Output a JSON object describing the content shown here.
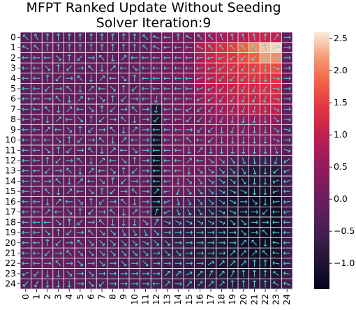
{
  "chart_data": {
    "type": "heatmap",
    "title_lines": [
      "MFPT Ranked Update Without Seeding",
      "Solver Iteration:9"
    ],
    "rows": 25,
    "cols": 25,
    "x_tick_labels": [
      "0",
      "1",
      "2",
      "3",
      "4",
      "5",
      "6",
      "7",
      "8",
      "9",
      "10",
      "11",
      "12",
      "13",
      "14",
      "15",
      "16",
      "17",
      "18",
      "19",
      "20",
      "21",
      "22",
      "23",
      "24"
    ],
    "y_tick_labels": [
      "0",
      "1",
      "2",
      "3",
      "4",
      "5",
      "6",
      "7",
      "8",
      "9",
      "10",
      "11",
      "12",
      "13",
      "14",
      "15",
      "16",
      "17",
      "18",
      "19",
      "20",
      "21",
      "22",
      "23",
      "24"
    ],
    "colorbar": {
      "min": -1.4,
      "max": 2.6,
      "ticks": [
        2.5,
        2.0,
        1.5,
        1.0,
        0.5,
        0.0,
        -0.5,
        -1.0
      ],
      "tick_labels": [
        "2.5",
        "2.0",
        "1.5",
        "1.0",
        "0.5",
        "0.0",
        "−0.5",
        "−1.0"
      ],
      "colormap": "rocket"
    },
    "grid": true,
    "grid_color": "#ffffff",
    "arrow_color": "#40e8e0",
    "values_rows": [
      "-0.25 -0.2 -0.2 -0.2 -0.2 -0.2 -0.2 -0.2 -0.2 -0.2 -0.2 -0.2 -0.1 0.1 0.1 0.1 0.3 0.6 0.7 0.8 0.9 1.1 1.1 1.0 -0.1",
      "-0.2 -0.1 -0.1 -0.1 -0.1 -0.1 -0.1 -0.1 -0.1 -0.1 -0.1 -0.1 0.0 0.1 0.1 0.2 0.9 1.1 1.3 1.5 1.8 2.1 2.4 2.5 -0.1",
      "-0.2 -0.1 -0.1 -0.1 -0.1 -0.1 -0.1 -0.1 -0.1 -0.1 -0.1 -0.1 0.0 0.1 0.1 0.2 0.8 1.1 1.3 1.4 1.6 1.8 2.2 2.1 -0.1",
      "-0.2 -0.1 -0.1 -0.1 -0.1 -0.1 -0.1 -0.1 -0.1 -0.1 -0.1 -0.1 0.0 0.1 0.1 0.2 0.8 1.0 1.2 1.3 1.4 1.5 1.6 1.6 -0.1",
      "-0.2 -0.1 -0.1 -0.1 -0.1 -0.1 -0.1 -0.1 -0.1 -0.1 -0.1 -0.1 0.0 0.1 0.1 0.2 0.7 1.0 1.1 1.2 1.3 1.4 1.4 1.4 -0.1",
      "-0.2 -0.1 -0.1 -0.1 -0.1 -0.1 -0.1 -0.1 -0.1 -0.1 -0.1 -0.1 0.0 0.1 0.1 0.2 0.6 0.9 1.0 1.1 1.2 1.2 1.3 1.3 -0.1",
      "-0.2 -0.1 -0.1 -0.1 -0.1 -0.1 -0.1 -0.1 -0.1 -0.1 -0.1 -0.1 0.0 0.1 0.1 0.2 0.5 0.8 0.9 1.0 1.1 1.1 1.2 1.2 -0.1",
      "-0.2 -0.1 -0.1 -0.1 -0.1 -0.1 -0.1 -0.1 -0.1 -0.1 -0.1 -0.1 -1.0 0.1 0.1 0.2 0.3 0.6 0.7 0.8 0.9 1.0 1.0 1.0 -0.1",
      "-0.2 -0.1 -0.1 -0.1 -0.1 -0.1 -0.1 -0.1 -0.1 -0.1 -0.1 -0.1 -1.1 0.0 0.1 0.1 0.2 0.3 0.4 0.5 0.5 0.6 0.6 0.6 -0.1",
      "-0.2 -0.1 -0.1 -0.1 -0.1 -0.1 -0.1 -0.1 -0.1 -0.1 -0.1 -0.1 -1.1 0.0 0.1 0.1 0.1 0.2 0.2 0.2 0.3 0.3 0.3 0.3 -0.2",
      "-0.2 -0.1 -0.1 -0.1 -0.1 -0.1 -0.1 -0.1 -0.1 -0.1 -0.1 -0.1 -1.1 0.0 0.1 0.1 0.1 0.2 0.2 0.2 0.2 0.2 0.2 0.2 -0.2",
      "-0.2 -0.1 -0.1 -0.1 -0.1 -0.1 -0.1 -0.1 -0.1 -0.1 -0.1 -0.1 -1.1 0.0 0.1 0.1 0.1 0.1 0.1 0.1 0.1 0.1 0.1 0.1 -0.2",
      "-0.2 -0.1 -0.1 -0.1 -0.1 -0.1 -0.1 -0.1 -0.1 -0.1 -0.1 -0.1 -1.1 0.0 0.1 0.1 0.1 0.1 0.0 -0.3 -0.5 -0.6 -0.6 -0.6 -0.3",
      "-0.2 -0.1 -0.1 -0.1 -0.1 -0.1 -0.1 -0.1 -0.1 -0.1 -0.1 -0.1 -1.1 0.0 0.1 0.1 0.1 0.0 -0.3 -0.6 -0.8 -0.9 -0.9 -0.9 -0.4",
      "-0.2 -0.1 -0.1 -0.1 -0.1 -0.1 -0.1 -0.1 -0.1 -0.1 -0.1 -0.1 -1.1 0.0 0.1 0.0 0.0 -0.2 -0.6 -0.8 -1.0 -1.0 -1.0 -1.0 -0.5",
      "-0.2 -0.1 -0.1 -0.1 -0.1 -0.1 -0.1 -0.1 -0.1 -0.1 -0.1 -0.1 -1.1 -0.1 0.0 0.0 -0.2 -0.4 -0.7 -0.9 -1.1 -1.1 -1.1 -1.1 -0.5",
      "-0.2 -0.1 -0.1 -0.1 -0.1 -0.1 -0.1 -0.1 -0.1 -0.1 -0.1 -0.1 -1.1 -0.2 -0.2 -0.3 -0.5 -0.7 -0.9 -1.0 -1.1 -1.2 -1.2 -1.2 -0.5",
      "-0.2 -0.1 -0.1 -0.1 -0.1 -0.1 -0.1 -0.1 -0.1 -0.1 -0.1 -0.1 -1.1 -0.4 -0.5 -0.6 -0.7 -0.8 -0.9 -1.0 -1.1 -1.2 -1.2 -1.2 -0.6",
      "-0.2 -0.1 -0.1 -0.1 -0.1 -0.1 -0.1 -0.1 -0.1 -0.1 -0.1 -0.1 -0.3 -0.5 -0.6 -0.7 -0.8 -0.9 -1.0 -1.1 -1.1 -1.2 -1.2 -1.2 -0.6",
      "-0.2 -0.1 -0.1 -0.1 -0.1 -0.1 -0.1 -0.1 -0.2 -0.2 -0.3 -0.3 -0.4 -0.5 -0.6 -0.7 -0.8 -0.9 -1.0 -1.1 -1.2 -1.2 -1.2 -1.2 -0.6",
      "-0.2 -0.1 -0.1 -0.1 -0.1 -0.1 -0.1 -0.2 -0.2 -0.3 -0.3 -0.4 -0.5 -0.5 -0.6 -0.7 -0.8 -0.9 -1.0 -1.1 -1.2 -1.2 -1.2 -1.2 -0.6",
      "-0.2 -0.1 -0.1 -0.1 -0.1 -0.1 -0.2 -0.2 -0.3 -0.3 -0.4 -0.4 -0.5 -0.6 -0.6 -0.7 -0.8 -0.9 -1.0 -1.1 -1.1 -1.2 -1.2 -1.1 -0.6",
      "-0.2 -0.1 -0.1 -0.1 -0.1 -0.2 -0.2 -0.3 -0.3 -0.4 -0.4 -0.5 -0.5 -0.6 -0.7 -0.7 -0.8 -0.9 -1.0 -1.0 -1.1 -1.1 -1.1 -1.1 -0.6",
      "-0.2 -0.1 -0.1 -0.1 -0.1 -0.2 -0.2 -0.3 -0.3 -0.4 -0.4 -0.5 -0.5 -0.6 -0.6 -0.7 -0.8 -0.8 -0.9 -1.0 -1.0 -1.0 -1.0 -1.0 -0.6",
      "-0.25 -0.2 -0.2 -0.2 -0.2 -0.2 -0.3 -0.3 -0.3 -0.4 -0.4 -0.5 -0.5 -0.5 -0.6 -0.6 -0.7 -0.7 -0.8 -0.8 -0.8 -0.8 -0.8 -0.8 -0.5"
    ]
  }
}
